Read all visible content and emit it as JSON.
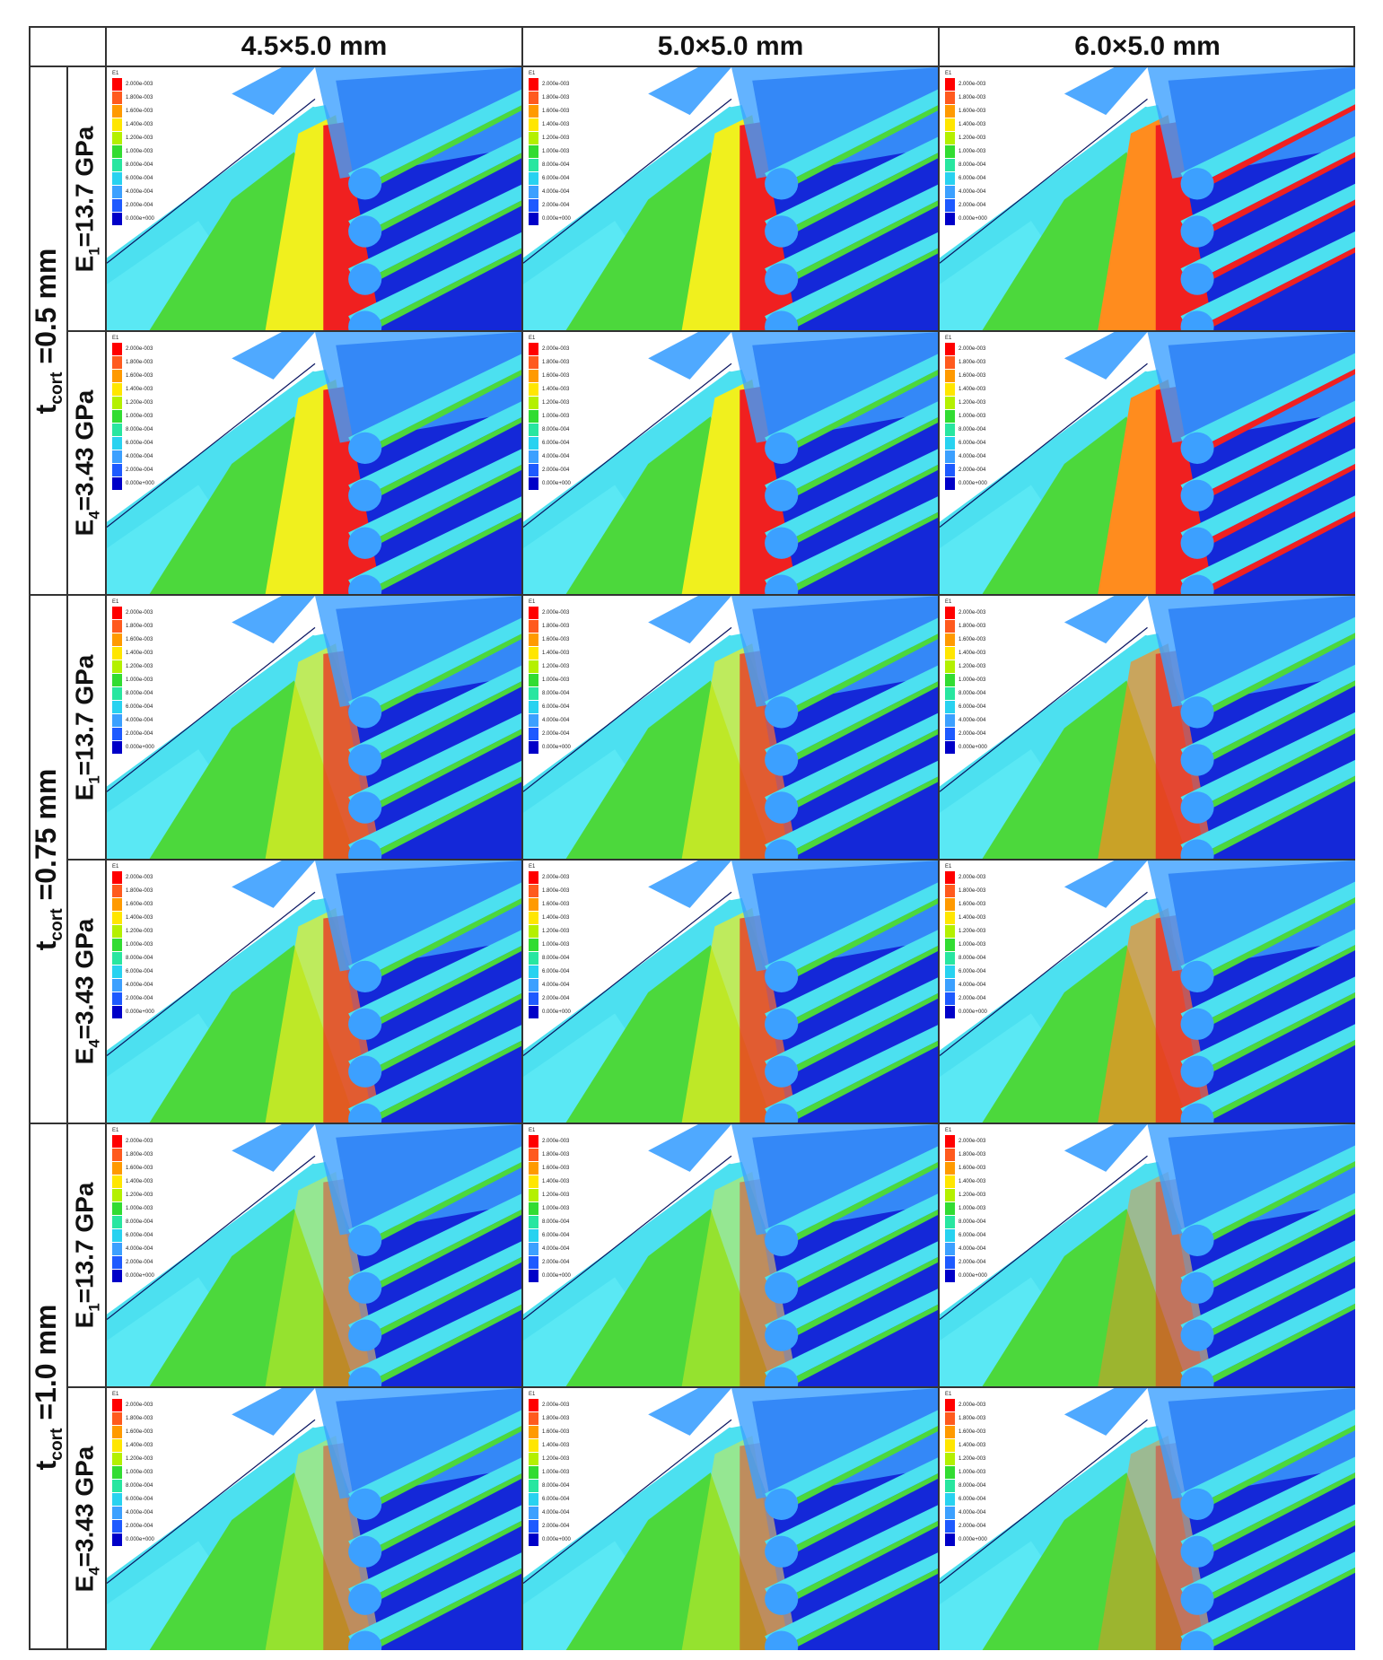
{
  "columns": [
    "4.5×5.0 mm",
    "5.0×5.0 mm",
    "6.0×5.0 mm"
  ],
  "row_groups": [
    {
      "prefix": "t",
      "sub": "cort",
      "suffix": " =0.5 mm"
    },
    {
      "prefix": "t",
      "sub": "cort",
      "suffix": " =0.75 mm"
    },
    {
      "prefix": "t",
      "sub": "cort",
      "suffix": " =1.0 mm"
    }
  ],
  "materials": [
    {
      "prefix": "E",
      "sub": "1",
      "suffix": "=13.7 GPa"
    },
    {
      "prefix": "E",
      "sub": "4",
      "suffix": "=3.43 GPa"
    }
  ],
  "legend": {
    "title": "E1",
    "entries": [
      {
        "label": "2.000e-003",
        "color": "#ff0000"
      },
      {
        "label": "1.800e-003",
        "color": "#ff5a1e"
      },
      {
        "label": "1.600e-003",
        "color": "#ff9a00"
      },
      {
        "label": "1.400e-003",
        "color": "#ffe600"
      },
      {
        "label": "1.200e-003",
        "color": "#b4f000"
      },
      {
        "label": "1.000e-003",
        "color": "#32dc32"
      },
      {
        "label": "8.000e-004",
        "color": "#28e6a0"
      },
      {
        "label": "6.000e-004",
        "color": "#28d2f0"
      },
      {
        "label": "4.000e-004",
        "color": "#3ca0ff"
      },
      {
        "label": "2.000e-004",
        "color": "#1e5aff"
      },
      {
        "label": "0.000e+000",
        "color": "#0000c8"
      }
    ]
  },
  "colors": {
    "red": "#f02020",
    "orange": "#ff8c1e",
    "yellow": "#f0f01e",
    "green": "#4cd83c",
    "cyan": "#4ce0f0",
    "lightblue": "#3ca0ff",
    "blue": "#1428d8",
    "darkblue": "#0a14a0"
  }
}
